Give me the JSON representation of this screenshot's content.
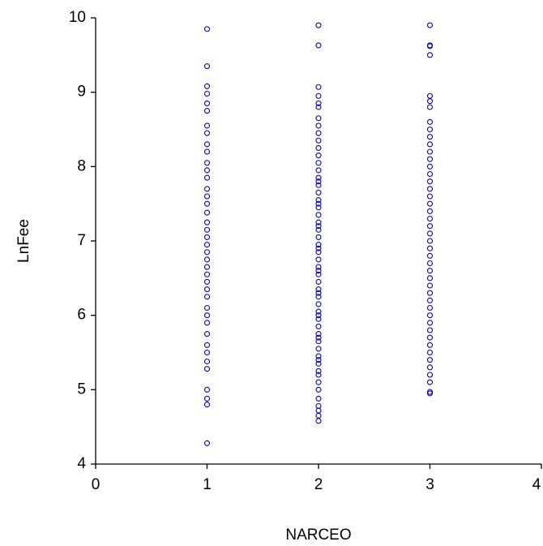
{
  "chart_data": {
    "type": "scatter",
    "x_label": "NARCEO",
    "y_label": "LnFee",
    "xlim": [
      0,
      4
    ],
    "xticks": [
      0,
      1,
      2,
      3,
      4
    ],
    "ylim": [
      4,
      10
    ],
    "yticks": [
      4,
      5,
      6,
      7,
      8,
      9,
      10
    ],
    "grid": false,
    "series": [
      {
        "x": 1,
        "color": "#0000cc",
        "values": [
          9.85,
          9.35,
          9.08,
          8.98,
          8.85,
          8.75,
          8.55,
          8.45,
          8.3,
          8.2,
          8.05,
          7.95,
          7.85,
          7.7,
          7.6,
          7.5,
          7.38,
          7.25,
          7.15,
          7.05,
          6.95,
          6.85,
          6.75,
          6.65,
          6.55,
          6.45,
          6.35,
          6.25,
          6.1,
          6.0,
          5.9,
          5.75,
          5.6,
          5.5,
          5.38,
          5.28,
          5.0,
          4.88,
          4.8,
          4.28
        ]
      },
      {
        "x": 2,
        "color": "#0000cc",
        "values": [
          9.9,
          9.63,
          9.07,
          8.95,
          8.85,
          8.8,
          8.65,
          8.55,
          8.45,
          8.35,
          8.25,
          8.15,
          8.05,
          7.95,
          7.85,
          7.8,
          7.75,
          7.65,
          7.55,
          7.5,
          7.45,
          7.35,
          7.25,
          7.2,
          7.15,
          7.05,
          6.95,
          6.9,
          6.85,
          6.75,
          6.65,
          6.6,
          6.55,
          6.45,
          6.35,
          6.3,
          6.25,
          6.15,
          6.05,
          6.0,
          5.95,
          5.85,
          5.75,
          5.7,
          5.65,
          5.55,
          5.45,
          5.4,
          5.35,
          5.25,
          5.2,
          5.1,
          5.0,
          4.88,
          4.78,
          4.72,
          4.65,
          4.58
        ]
      },
      {
        "x": 3,
        "color": "#0000cc",
        "values": [
          9.9,
          9.63,
          9.62,
          9.5,
          8.95,
          8.88,
          8.8,
          8.6,
          8.5,
          8.4,
          8.3,
          8.2,
          8.1,
          8.0,
          7.9,
          7.8,
          7.7,
          7.6,
          7.5,
          7.4,
          7.3,
          7.2,
          7.1,
          7.0,
          6.9,
          6.8,
          6.7,
          6.6,
          6.5,
          6.4,
          6.3,
          6.2,
          6.1,
          6.0,
          5.9,
          5.8,
          5.7,
          5.6,
          5.5,
          5.4,
          5.3,
          5.2,
          5.1,
          4.97,
          4.95
        ]
      }
    ]
  }
}
